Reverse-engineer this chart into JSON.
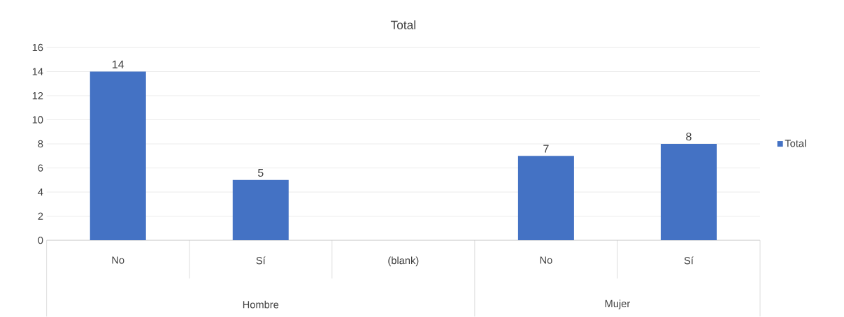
{
  "chart_data": {
    "type": "bar",
    "title": "Total",
    "categories": [
      "No",
      "Sí",
      "(blank)",
      "No",
      "Sí"
    ],
    "series": [
      {
        "name": "Total",
        "color": "#4472c4",
        "values": [
          14,
          5,
          null,
          7,
          8
        ]
      }
    ],
    "annotations": [
      "Hombre",
      "Mujer"
    ],
    "ylim": [
      0,
      16
    ],
    "yticks": [
      0,
      2,
      4,
      6,
      8,
      10,
      12,
      14,
      16
    ],
    "grid": "y",
    "legend": "right",
    "data_labels": true
  }
}
